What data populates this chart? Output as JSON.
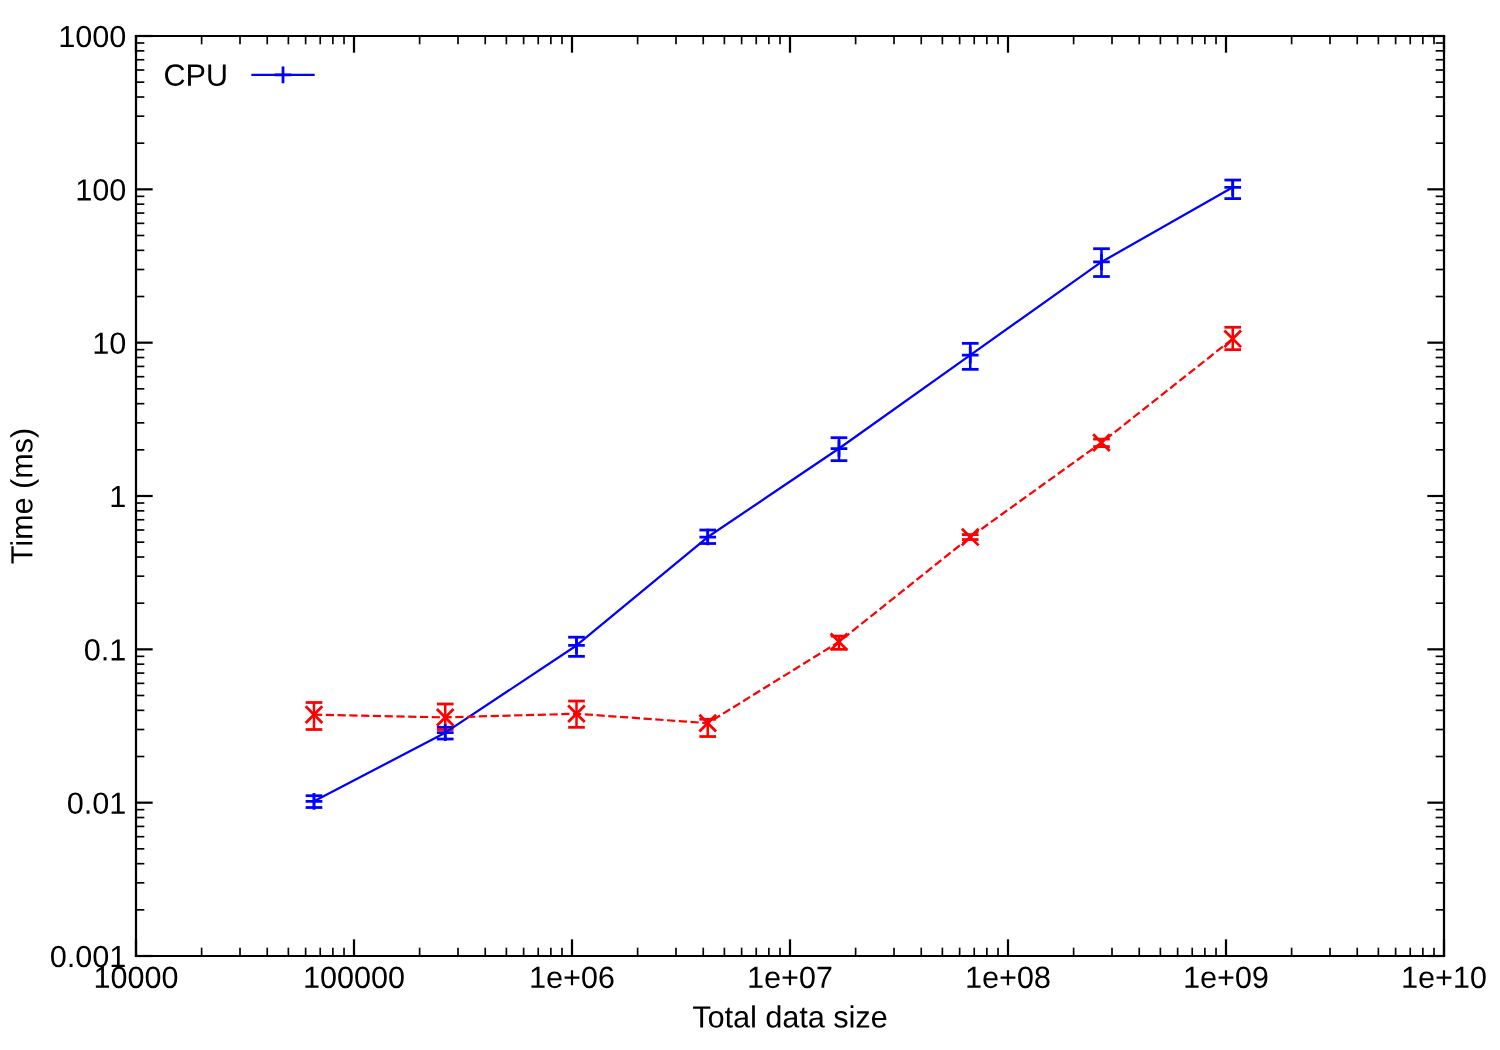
{
  "chart_data": {
    "type": "line",
    "xlabel": "Total data size",
    "ylabel": "Time (ms)",
    "log": "xy",
    "grid": false,
    "legend": "top left",
    "x": [
      65536,
      262144,
      1048576,
      4194304,
      16777216,
      67108864,
      268435456,
      1073741824
    ],
    "xlim": [
      10000,
      10000000000
    ],
    "xticks": [
      {
        "value": 10000,
        "label": "10000"
      },
      {
        "value": 100000,
        "label": "100000"
      },
      {
        "value": 1000000,
        "label": "1e+06"
      },
      {
        "value": 10000000,
        "label": "1e+07"
      },
      {
        "value": 100000000,
        "label": "1e+08"
      },
      {
        "value": 1000000000,
        "label": "1e+09"
      },
      {
        "value": 10000000000,
        "label": "1e+10"
      }
    ],
    "ylim": [
      0.001,
      1000
    ],
    "yticks": [
      0.001,
      0.01,
      0.1,
      1,
      10,
      100,
      1000
    ],
    "series": [
      {
        "name": "CPU",
        "color": "#0000ff",
        "marker": "cross",
        "line_style": "solid",
        "values": [
          0.0102,
          0.0286,
          0.106,
          0.54,
          2.04,
          8.3,
          33.6,
          103
        ],
        "errors": [
          [
            0.0093,
            0.0111
          ],
          [
            0.026,
            0.031
          ],
          [
            0.09,
            0.12
          ],
          [
            0.49,
            0.6
          ],
          [
            1.7,
            2.4
          ],
          [
            6.7,
            9.9
          ],
          [
            27,
            41
          ],
          [
            87,
            115
          ]
        ]
      },
      {
        "color": "#ff0000",
        "marker": "cross",
        "line_style": "dashed",
        "values": [
          0.0375,
          0.036,
          0.038,
          0.033,
          0.112,
          0.54,
          2.23,
          10.6
        ],
        "errors": [
          [
            0.03,
            0.045
          ],
          [
            0.03,
            0.044
          ],
          [
            0.031,
            0.046
          ],
          [
            0.027,
            0.035
          ],
          [
            0.1,
            0.122
          ],
          [
            0.52,
            0.56
          ],
          [
            2.1,
            2.35
          ],
          [
            9,
            12.6
          ]
        ]
      }
    ]
  }
}
